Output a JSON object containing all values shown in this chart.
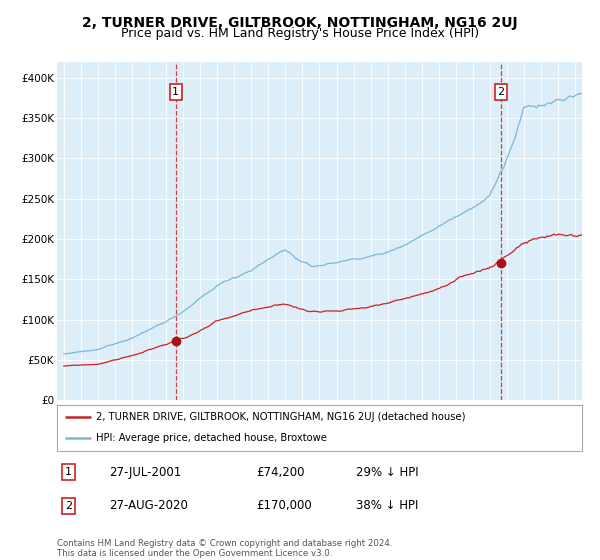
{
  "title": "2, TURNER DRIVE, GILTBROOK, NOTTINGHAM, NG16 2UJ",
  "subtitle": "Price paid vs. HM Land Registry's House Price Index (HPI)",
  "ylim": [
    0,
    420000
  ],
  "yticks": [
    0,
    50000,
    100000,
    150000,
    200000,
    250000,
    300000,
    350000,
    400000
  ],
  "ytick_labels": [
    "£0",
    "£50K",
    "£100K",
    "£150K",
    "£200K",
    "£250K",
    "£300K",
    "£350K",
    "£400K"
  ],
  "hpi_color": "#7ab8d9",
  "price_color": "#cc2222",
  "marker_color": "#aa1111",
  "annotation_box_color": "#cc2222",
  "background_color": "#ffffff",
  "chart_bg_color": "#ddeef8",
  "grid_color": "#ffffff",
  "legend_label_price": "2, TURNER DRIVE, GILTBROOK, NOTTINGHAM, NG16 2UJ (detached house)",
  "legend_label_hpi": "HPI: Average price, detached house, Broxtowe",
  "point1_date": "27-JUL-2001",
  "point1_price": "£74,200",
  "point1_hpi": "29% ↓ HPI",
  "point1_year": 2001.57,
  "point1_value": 74200,
  "point2_date": "27-AUG-2020",
  "point2_price": "£170,000",
  "point2_hpi": "38% ↓ HPI",
  "point2_year": 2020.65,
  "point2_value": 170000,
  "footer": "Contains HM Land Registry data © Crown copyright and database right 2024.\nThis data is licensed under the Open Government Licence v3.0.",
  "title_fontsize": 10,
  "subtitle_fontsize": 9,
  "tick_fontsize": 7.5,
  "annot_fontsize": 8.5
}
